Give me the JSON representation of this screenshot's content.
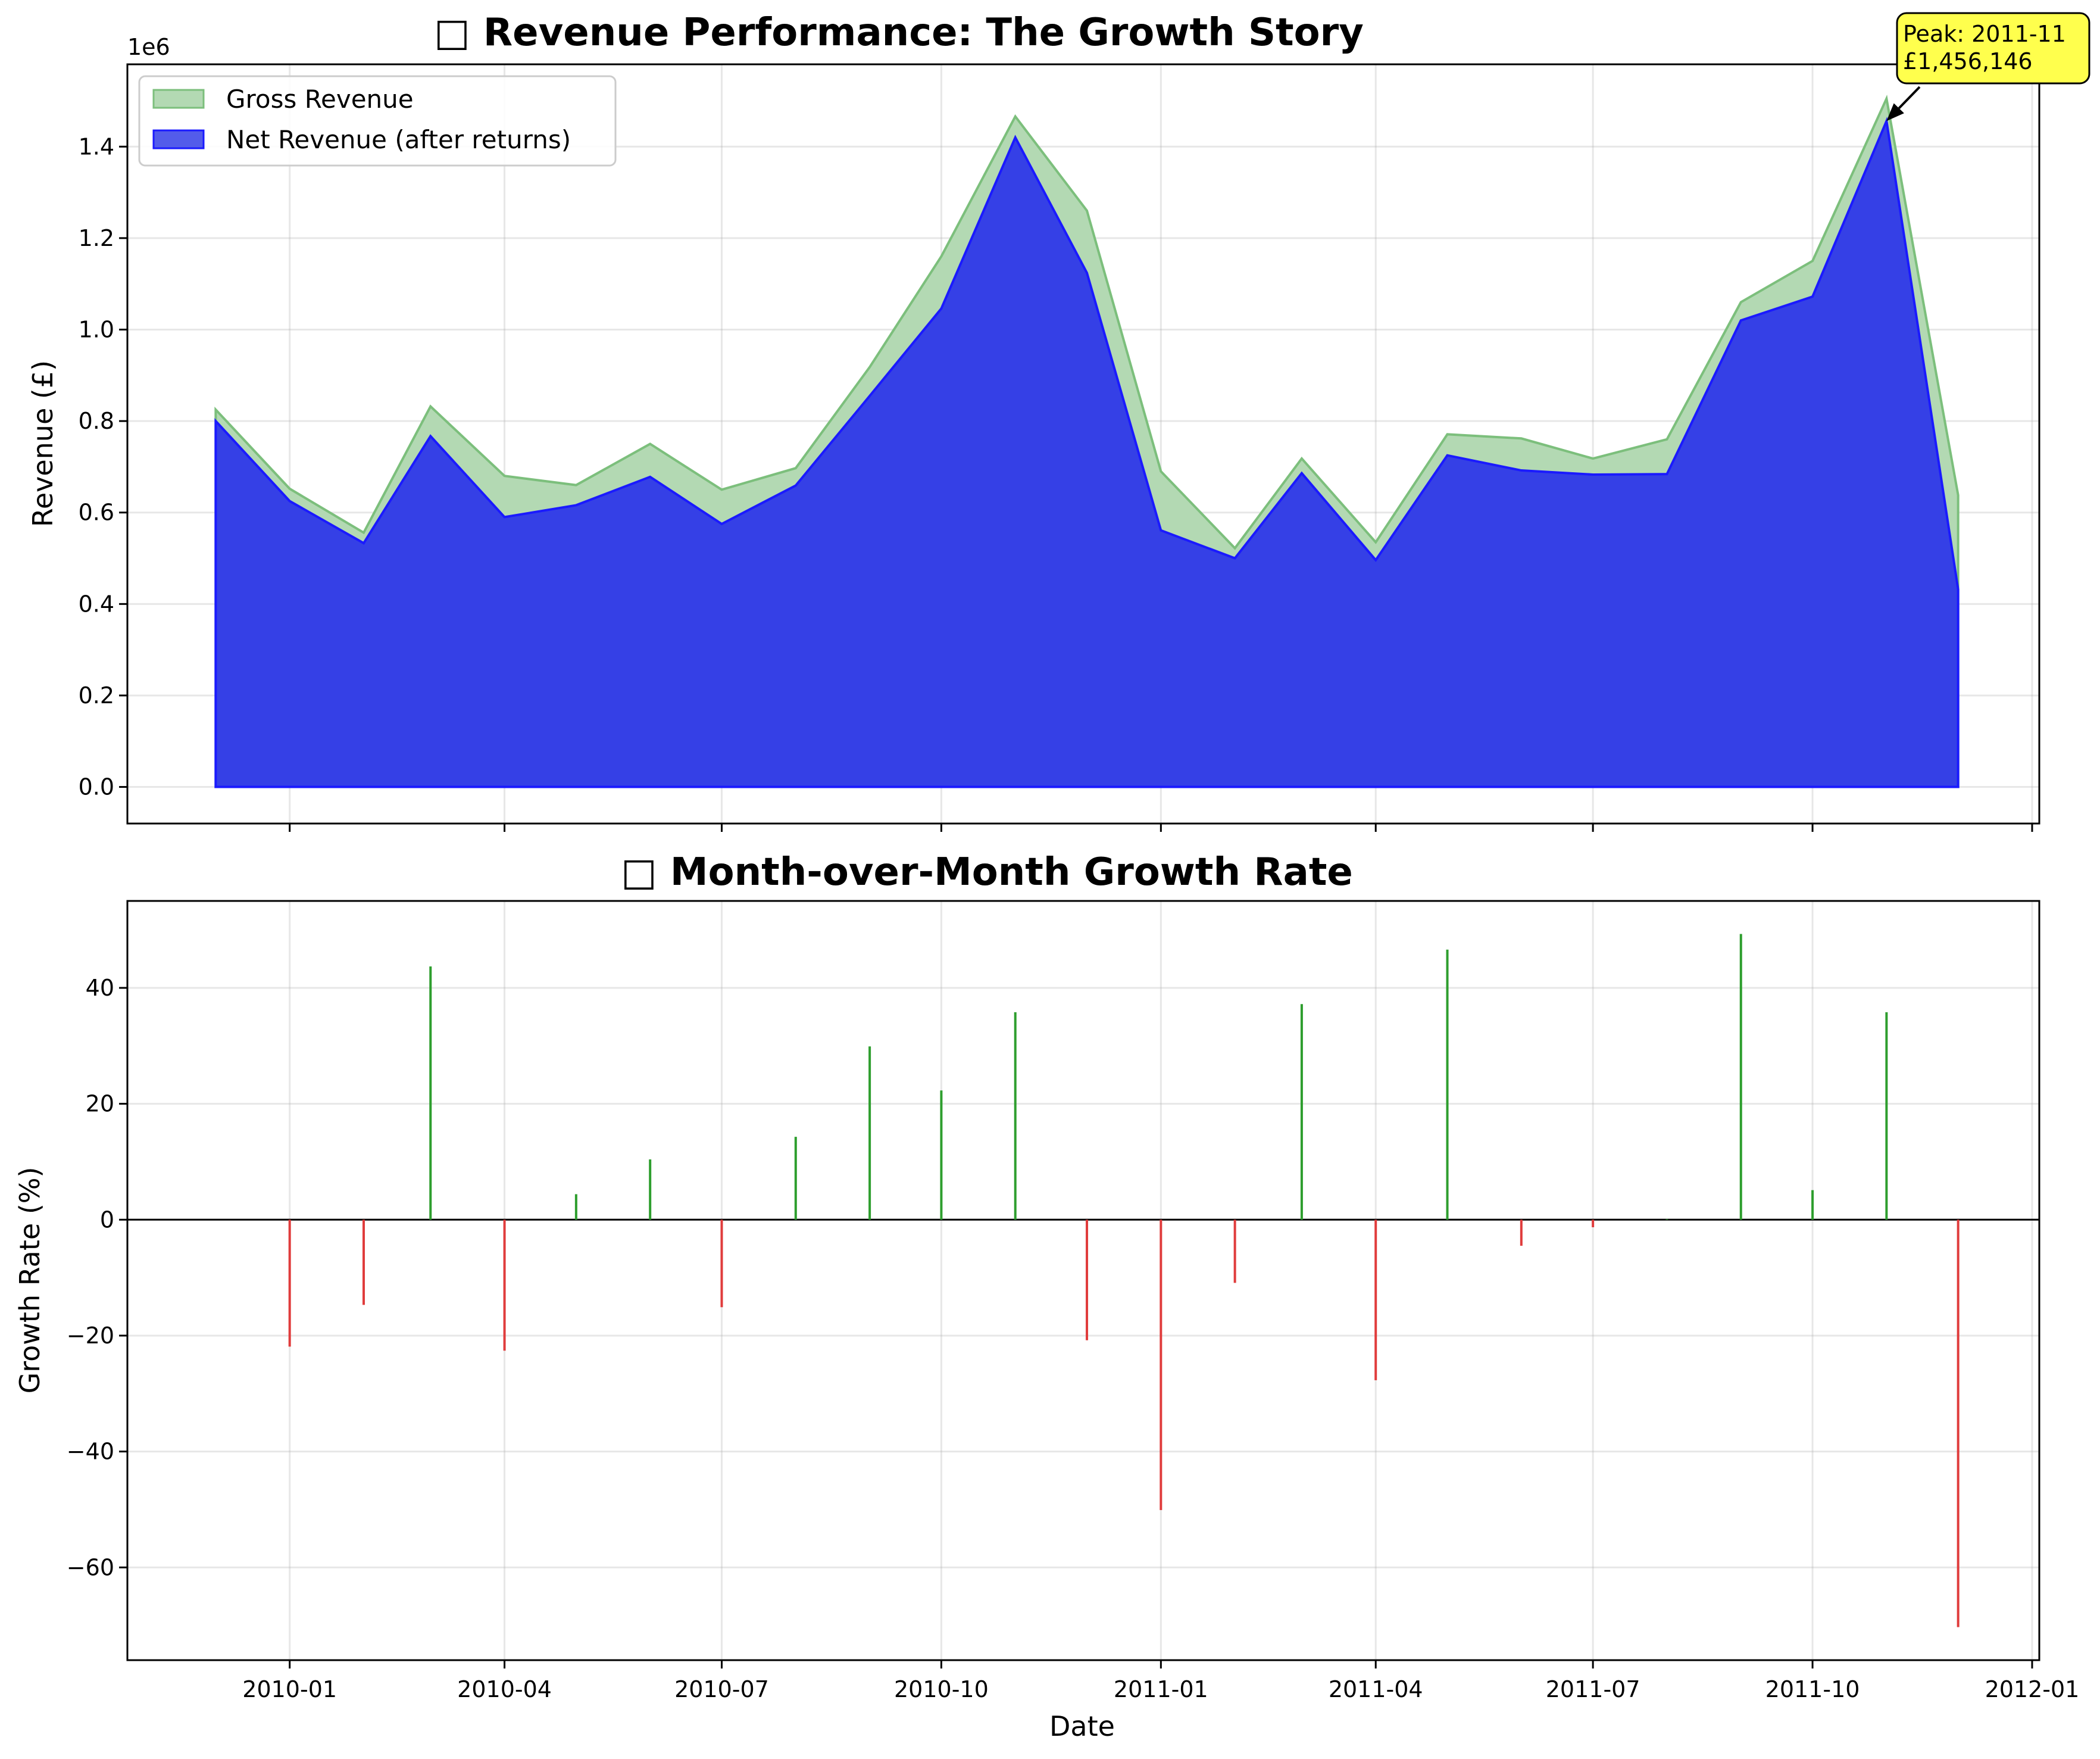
{
  "colors": {
    "gross_fill": "#b3d9b3",
    "gross_edge": "#7cbf7c",
    "net_fill": "#3540e6",
    "net_edge": "#1a1aff",
    "positive_bar": "#2e9e2e",
    "negative_bar": "#e03c3c",
    "annotation_bg": "#ffff4d"
  },
  "chart_data": [
    {
      "type": "area",
      "title": "□ Revenue Performance: The Growth Story",
      "xlabel": "",
      "ylabel": "Revenue (£)",
      "y_offset_label": "1e6",
      "ylim": [
        -0.08,
        1.58
      ],
      "y_ticks": [
        0.0,
        0.2,
        0.4,
        0.6,
        0.8,
        1.0,
        1.2,
        1.4
      ],
      "y_tick_labels": [
        "0.0",
        "0.2",
        "0.4",
        "0.6",
        "0.8",
        "1.0",
        "1.2",
        "1.4"
      ],
      "x": [
        "2009-12",
        "2010-01",
        "2010-02",
        "2010-03",
        "2010-04",
        "2010-05",
        "2010-06",
        "2010-07",
        "2010-08",
        "2010-09",
        "2010-10",
        "2010-11",
        "2010-12",
        "2011-01",
        "2011-02",
        "2011-03",
        "2011-04",
        "2011-05",
        "2011-06",
        "2011-07",
        "2011-08",
        "2011-09",
        "2011-10",
        "2011-11",
        "2011-12"
      ],
      "legend_position": "upper-left",
      "grid": true,
      "series": [
        {
          "name": "Gross Revenue",
          "values": [
            0.825,
            0.652,
            0.556,
            0.832,
            0.68,
            0.66,
            0.75,
            0.65,
            0.697,
            0.918,
            1.16,
            1.466,
            1.26,
            0.69,
            0.522,
            0.718,
            0.535,
            0.771,
            0.762,
            0.718,
            0.76,
            1.06,
            1.15,
            1.505,
            0.638
          ]
        },
        {
          "name": "Net Revenue (after returns)",
          "values": [
            0.8,
            0.625,
            0.533,
            0.767,
            0.59,
            0.616,
            0.678,
            0.575,
            0.659,
            0.855,
            1.046,
            1.42,
            1.124,
            0.561,
            0.5,
            0.686,
            0.496,
            0.725,
            0.692,
            0.683,
            0.684,
            1.02,
            1.072,
            1.456,
            0.432
          ]
        }
      ],
      "annotation": {
        "line1": "Peak: 2011-11",
        "line2": "£1,456,146",
        "x": "2011-11",
        "y": 1.456
      }
    },
    {
      "type": "bar",
      "title": "□ Month-over-Month Growth Rate",
      "xlabel": "Date",
      "ylabel": "Growth Rate (%)",
      "ylim": [
        -76,
        55
      ],
      "y_ticks": [
        -60,
        -40,
        -20,
        0,
        20,
        40
      ],
      "y_tick_labels": [
        "−60",
        "−40",
        "−20",
        "0",
        "20",
        "40"
      ],
      "x": [
        "2010-01",
        "2010-02",
        "2010-03",
        "2010-04",
        "2010-05",
        "2010-06",
        "2010-07",
        "2010-08",
        "2010-09",
        "2010-10",
        "2010-11",
        "2010-12",
        "2011-01",
        "2011-02",
        "2011-03",
        "2011-04",
        "2011-05",
        "2011-06",
        "2011-07",
        "2011-08",
        "2011-09",
        "2011-10",
        "2011-11",
        "2011-12"
      ],
      "values": [
        -21.9,
        -14.7,
        43.7,
        -22.6,
        4.4,
        10.4,
        -15.1,
        14.3,
        29.9,
        22.3,
        35.8,
        -20.8,
        -50.1,
        -10.9,
        37.2,
        -27.7,
        46.6,
        -4.5,
        -1.3,
        0.1,
        49.3,
        5.1,
        35.8,
        -70.3
      ],
      "grid": true
    }
  ],
  "x_axis": {
    "ticks": [
      "2010-01",
      "2010-04",
      "2010-07",
      "2010-10",
      "2011-01",
      "2011-04",
      "2011-07",
      "2011-10",
      "2012-01"
    ],
    "range": [
      "2009-10-25",
      "2012-01-04"
    ]
  }
}
